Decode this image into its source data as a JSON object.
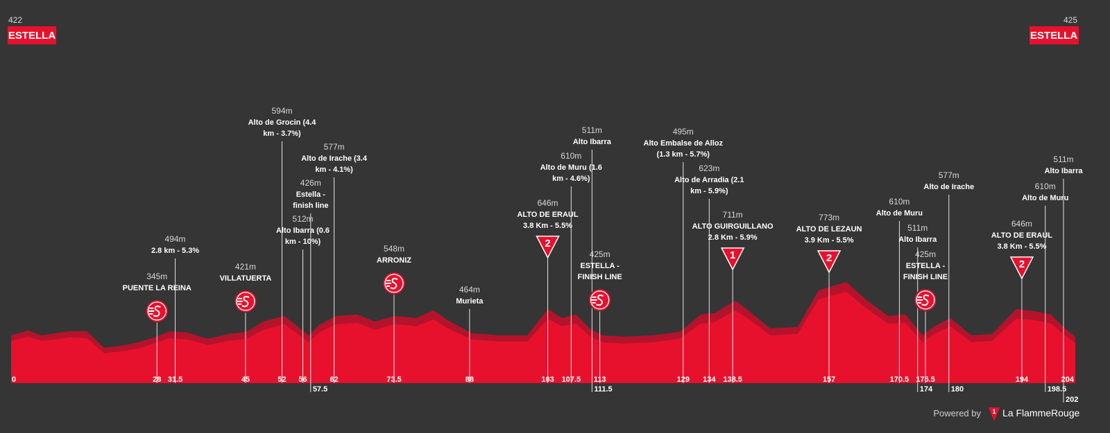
{
  "start": {
    "altitude": "422",
    "name": "ESTELLA"
  },
  "finish": {
    "altitude": "425",
    "name": "ESTELLA"
  },
  "km": [
    0,
    28,
    31.5,
    45,
    52,
    56,
    57.5,
    62,
    73.5,
    88,
    103,
    107.5,
    111.5,
    113,
    129,
    134,
    138.5,
    157,
    170.5,
    174,
    175.5,
    180,
    194,
    198.5,
    202,
    204
  ],
  "waypoints": [
    {
      "altitude": "345m",
      "name": [
        "PUENTE LA REINA"
      ]
    },
    {
      "altitude": "494m",
      "name": [
        "2.8 km - 5.3%"
      ]
    },
    {
      "altitude": "421m",
      "name": [
        "VILLATUERTA"
      ]
    },
    {
      "altitude": "594m",
      "name": [
        "Alto de Grocin (4.4",
        "km - 3.7%)"
      ]
    },
    {
      "altitude": "512m",
      "name": [
        "Alto Ibarra (0.6",
        "km - 10%)"
      ]
    },
    {
      "altitude": "426m",
      "name": [
        "Estella -",
        "finish line"
      ]
    },
    {
      "altitude": "577m",
      "name": [
        "Alto de Irache (3.4",
        "km - 4.1%)"
      ]
    },
    {
      "altitude": "548m",
      "name": [
        "ARRONIZ"
      ]
    },
    {
      "altitude": "464m",
      "name": [
        "Murieta"
      ]
    },
    {
      "altitude": "646m",
      "name": [
        "ALTO DE ERAUL",
        "3.8 Km - 5.5%"
      ],
      "category": "2"
    },
    {
      "altitude": "610m",
      "name": [
        "Alto de Muru (1.6",
        "km - 4.6%)"
      ]
    },
    {
      "altitude": "511m",
      "name": [
        "Alto Ibarra"
      ]
    },
    {
      "altitude": "425m",
      "name": [
        "ESTELLA -",
        "FINISH LINE"
      ]
    },
    {
      "altitude": "495m",
      "name": [
        "Alto Embalse de Alloz",
        "(1.3 km - 5.7%)"
      ]
    },
    {
      "altitude": "623m",
      "name": [
        "Alto de Arradia (2.1",
        "km - 5.9%)"
      ]
    },
    {
      "altitude": "711m",
      "name": [
        "ALTO GUIRGUILLANO",
        "2.8 Km - 5.9%"
      ],
      "category": "1"
    },
    {
      "altitude": "773m",
      "name": [
        "ALTO DE LEZAUN",
        "3.9 Km - 5.5%"
      ],
      "category": "2"
    },
    {
      "altitude": "610m",
      "name": [
        "Alto de Muru"
      ]
    },
    {
      "altitude": "511m",
      "name": [
        "Alto Ibarra"
      ]
    },
    {
      "altitude": "425m",
      "name": [
        "ESTELLA -",
        "FINISH LINE"
      ]
    },
    {
      "altitude": "577m",
      "name": [
        "Alto de Irache"
      ]
    },
    {
      "altitude": "646m",
      "name": [
        "ALTO DE ERAUL",
        "3.8 Km - 5.5%"
      ],
      "category": "2"
    },
    {
      "altitude": "610m",
      "name": [
        "Alto de Muru"
      ]
    },
    {
      "altitude": "511m",
      "name": [
        "Alto Ibarra"
      ]
    }
  ],
  "footer": {
    "powered": "Powered by",
    "brand_mark": "1",
    "brand": "La FlammeRouge"
  }
}
